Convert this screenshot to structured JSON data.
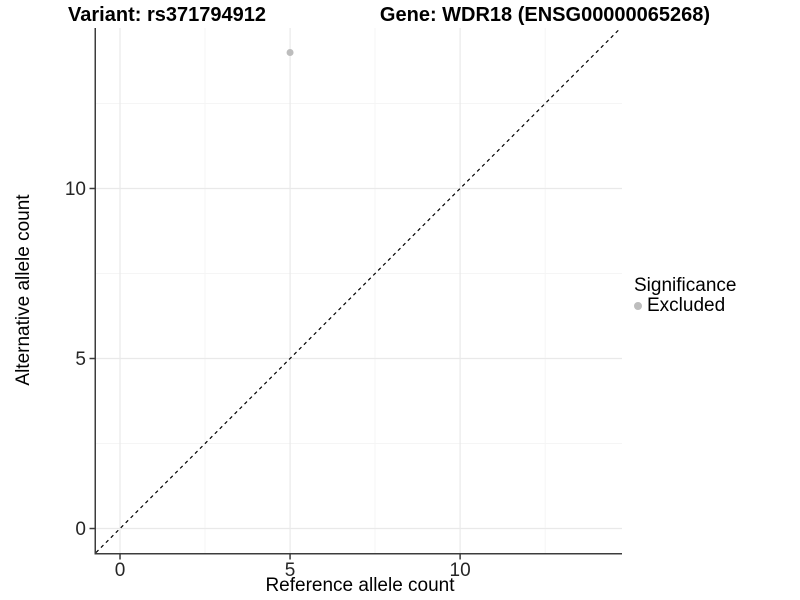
{
  "chart_data": {
    "type": "scatter",
    "title_left": "Variant: rs371794912",
    "title_right": "Gene: WDR18 (ENSG00000065268)",
    "xlabel": "Reference allele count",
    "ylabel": "Alternative allele count",
    "xlim": [
      -0.706,
      14.76
    ],
    "ylim": [
      -0.72,
      14.72
    ],
    "x_major_ticks": [
      0,
      5,
      10
    ],
    "y_major_ticks": [
      0,
      5,
      10
    ],
    "x_minor_ticks": [
      2.5,
      7.5,
      12.5
    ],
    "y_minor_ticks": [
      2.5,
      7.5,
      12.5
    ],
    "grid": true,
    "points": [
      {
        "x": 5,
        "y": 14,
        "significance": "Excluded"
      }
    ],
    "reference_line": {
      "slope": 1,
      "intercept": 0,
      "style": "dashed"
    },
    "legend": {
      "position": "right",
      "title": "Significance",
      "items": [
        {
          "label": "Excluded",
          "color": "#bdbdbd"
        }
      ]
    },
    "colors": {
      "point": "#bdbdbd",
      "grid_major": "#e9e9e9",
      "grid_minor": "#f5f5f5",
      "axis_line": "#3c3c3c",
      "tick_mark": "#3c3c3c",
      "tick_label": "#262626",
      "reference_line": "#000000",
      "background": "#ffffff"
    }
  }
}
